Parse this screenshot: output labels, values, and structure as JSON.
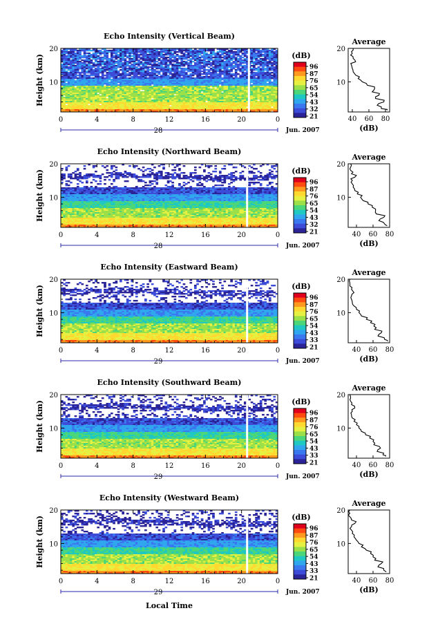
{
  "x_axis_label": "Local Time",
  "colorbar": {
    "unit": "(dB)",
    "tick_sets": [
      [
        "96",
        "87",
        "76",
        "65",
        "54",
        "43",
        "32",
        "21"
      ],
      [
        "96",
        "87",
        "76",
        "65",
        "54",
        "43",
        "32",
        "21"
      ],
      [
        "96",
        "87",
        "76",
        "65",
        "54",
        "43",
        "33",
        "21"
      ],
      [
        "96",
        "87",
        "76",
        "65",
        "54",
        "43",
        "33",
        "21"
      ],
      [
        "96",
        "87",
        "76",
        "65",
        "54",
        "43",
        "33",
        "21"
      ]
    ],
    "colors": [
      "#e0001c",
      "#ff4a10",
      "#ff9a1e",
      "#ffd930",
      "#e6f040",
      "#9be048",
      "#4cd67a",
      "#1fc9c2",
      "#30a6ee",
      "#3a78f0",
      "#3c4cd8",
      "#2a2498"
    ]
  },
  "chart_data": [
    {
      "type": "heatmap",
      "title": "Echo Intensity (Vertical Beam)",
      "ylabel": "Height (km)",
      "x_ticks": [
        "0",
        "4",
        "8",
        "12",
        "16",
        "20",
        "0"
      ],
      "y_ticks": [
        "20",
        "10"
      ],
      "x_range_hours": [
        0,
        24
      ],
      "date_day": "28",
      "date_month": "Jun. 2007",
      "gap_hour": 20.7,
      "profile": {
        "title": "Average",
        "xlabel": "(dB)",
        "x_ticks": [
          "40",
          "60",
          "80"
        ],
        "y_ticks": [
          "20",
          "10"
        ],
        "xlim": [
          35,
          85
        ],
        "ylim": [
          1,
          20
        ],
        "height_km": [
          1.5,
          2,
          3,
          4,
          5,
          6,
          7,
          8,
          9,
          10,
          11,
          12,
          13,
          14,
          15,
          16,
          17,
          18,
          19,
          20
        ],
        "avg_db": [
          82,
          75,
          70,
          78,
          68,
          72,
          64,
          67,
          58,
          52,
          47,
          44,
          41,
          40,
          39,
          44,
          41,
          38,
          39,
          41
        ]
      }
    },
    {
      "type": "heatmap",
      "title": "Echo Intensity (Northward Beam)",
      "ylabel": "Height (km)",
      "x_ticks": [
        "0",
        "4",
        "8",
        "12",
        "16",
        "20",
        "0"
      ],
      "y_ticks": [
        "20",
        "10"
      ],
      "x_range_hours": [
        0,
        24
      ],
      "date_day": "28",
      "date_month": "Jun. 2007",
      "gap_hour": 20.5,
      "profile": {
        "title": "Average",
        "xlabel": "(dB)",
        "x_ticks": [
          "40",
          "60",
          "80"
        ],
        "y_ticks": [
          "20",
          "10"
        ],
        "xlim": [
          30,
          80
        ],
        "ylim": [
          1,
          20
        ],
        "height_km": [
          1.5,
          2,
          3,
          4,
          5,
          6,
          7,
          8,
          9,
          10,
          11,
          12,
          13,
          14,
          15,
          16,
          17,
          18,
          19,
          20
        ],
        "avg_db": [
          77,
          74,
          67,
          73,
          64,
          63,
          59,
          54,
          48,
          45,
          41,
          38,
          36,
          35,
          35,
          38,
          34,
          33,
          33,
          33
        ]
      }
    },
    {
      "type": "heatmap",
      "title": "Echo Intensity (Eastward Beam)",
      "ylabel": "Height (km)",
      "x_ticks": [
        "0",
        "4",
        "8",
        "12",
        "16",
        "20",
        "0"
      ],
      "y_ticks": [
        "20",
        "10"
      ],
      "x_range_hours": [
        0,
        24
      ],
      "date_day": "29",
      "date_month": "Jun. 2007",
      "gap_hour": 20.5,
      "profile": {
        "title": "Average",
        "xlabel": "(dB)",
        "x_ticks": [
          "40",
          "60",
          "80"
        ],
        "y_ticks": [
          "20",
          "10"
        ],
        "xlim": [
          30,
          80
        ],
        "ylim": [
          1,
          20
        ],
        "height_km": [
          1.5,
          2,
          3,
          4,
          5,
          6,
          7,
          8,
          9,
          10,
          11,
          12,
          13,
          14,
          15,
          16,
          17,
          18,
          19,
          20
        ],
        "avg_db": [
          78,
          74,
          66,
          70,
          62,
          61,
          57,
          52,
          46,
          43,
          40,
          37,
          35,
          34,
          34,
          37,
          34,
          32,
          32,
          32
        ]
      }
    },
    {
      "type": "heatmap",
      "title": "Echo Intensity (Southward Beam)",
      "ylabel": "Height (km)",
      "x_ticks": [
        "0",
        "4",
        "8",
        "12",
        "16",
        "20",
        "0"
      ],
      "y_ticks": [
        "20",
        "10"
      ],
      "x_range_hours": [
        0,
        24
      ],
      "date_day": "29",
      "date_month": "Jun. 2007",
      "gap_hour": 20.5,
      "profile": {
        "title": "Average",
        "xlabel": "(dB)",
        "x_ticks": [
          "40",
          "60",
          "80"
        ],
        "y_ticks": [
          "20",
          "10"
        ],
        "xlim": [
          30,
          80
        ],
        "ylim": [
          1,
          20
        ],
        "height_km": [
          1.5,
          2,
          3,
          4,
          5,
          6,
          7,
          8,
          9,
          10,
          11,
          12,
          13,
          14,
          15,
          16,
          17,
          18,
          19,
          20
        ],
        "avg_db": [
          75,
          72,
          65,
          69,
          61,
          60,
          56,
          51,
          46,
          43,
          40,
          37,
          35,
          34,
          35,
          38,
          34,
          33,
          33,
          32
        ]
      }
    },
    {
      "type": "heatmap",
      "title": "Echo Intensity (Westward Beam)",
      "ylabel": "Height (km)",
      "x_ticks": [
        "0",
        "4",
        "8",
        "12",
        "16",
        "20",
        "0"
      ],
      "y_ticks": [
        "20",
        "10"
      ],
      "x_range_hours": [
        0,
        24
      ],
      "date_day": "29",
      "date_month": "Jun. 2007",
      "gap_hour": 20.5,
      "profile": {
        "title": "Average",
        "xlabel": "(dB)",
        "x_ticks": [
          "40",
          "60",
          "80"
        ],
        "y_ticks": [
          "20",
          "10"
        ],
        "xlim": [
          30,
          80
        ],
        "ylim": [
          1,
          20
        ],
        "height_km": [
          1.5,
          2,
          3,
          4,
          5,
          6,
          7,
          8,
          9,
          10,
          11,
          12,
          13,
          14,
          15,
          16,
          17,
          18,
          19,
          20
        ],
        "avg_db": [
          76,
          73,
          66,
          70,
          62,
          60,
          57,
          52,
          46,
          43,
          40,
          37,
          35,
          34,
          34,
          38,
          34,
          32,
          32,
          32
        ]
      }
    }
  ]
}
